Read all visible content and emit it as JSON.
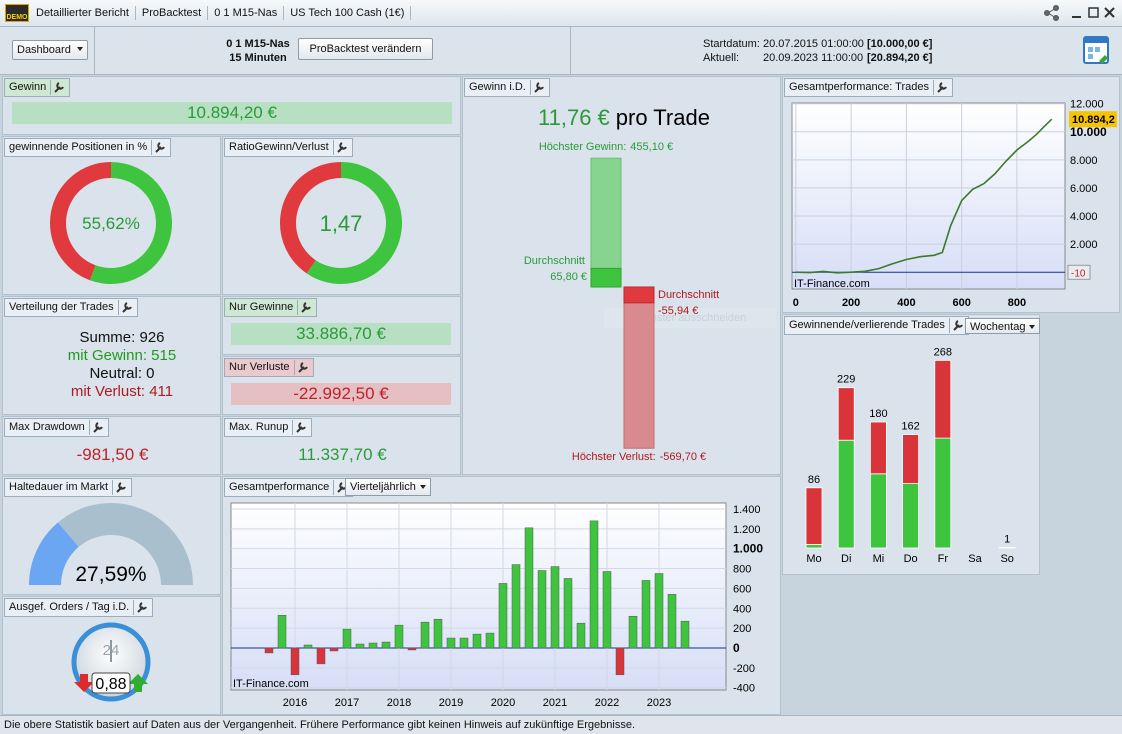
{
  "window": {
    "badge": "DEMO",
    "tabs": [
      "Detaillierter Bericht",
      "ProBacktest",
      "0 1 M15-Nas",
      "US Tech 100 Cash (1€)"
    ]
  },
  "toolbar": {
    "view": "Dashboard",
    "system": "0 1 M15-Nas",
    "timeframe": "15 Minuten",
    "edit": "ProBacktest verändern",
    "start_label": "Startdatum:",
    "start_date": "20.07.2015 01:00:00",
    "start_capital": "[10.000,00 €]",
    "current_label": "Aktuell:",
    "current_date": "20.09.2023 11:00:00",
    "current_capital": "[20.894,20 €]"
  },
  "widgets": {
    "profit": {
      "title": "Gewinn",
      "value": "10.894,20 €"
    },
    "win_rate": {
      "title": "gewinnende Positionen in %",
      "value": 55.62,
      "label": "55,62%"
    },
    "ratio": {
      "title": "RatioGewinn/Verlust",
      "value": 1.47,
      "label": "1,47"
    },
    "distribution": {
      "title": "Verteilung der Trades",
      "rows": [
        {
          "label": "Summe:",
          "value": 926
        },
        {
          "label": "mit Gewinn:",
          "value": 515
        },
        {
          "label": "Neutral:",
          "value": 0
        },
        {
          "label": "mit Verlust:",
          "value": 411
        }
      ]
    },
    "gains_only": {
      "title": "Nur Gewinne",
      "value": "33.886,70 €"
    },
    "losses_only": {
      "title": "Nur Verluste",
      "value": "-22.992,50 €"
    },
    "max_drawdown": {
      "title": "Max Drawdown",
      "value": "-981,50 €"
    },
    "max_runup": {
      "title": "Max. Runup",
      "value": "11.337,70 €"
    },
    "avg_trade": {
      "title": "Gewinn i.D.",
      "value": "11,76 €",
      "unit": "pro Trade",
      "max_gain_label": "Höchster Gewinn:",
      "max_gain": {
        "value": 455.1,
        "label": "455,10 €"
      },
      "avg_gain_label": "Durchschnitt",
      "avg_gain": {
        "value": 65.8,
        "label": "65,80 €"
      },
      "avg_loss_label": "Durchschnitt",
      "avg_loss": {
        "value": -55.94,
        "label": "-55,94 €"
      },
      "max_loss_label": "Höchster Verlust:",
      "max_loss": {
        "value": -569.7,
        "label": "-569,70 €"
      }
    },
    "holding_time": {
      "title": "Haltedauer im Markt",
      "value": 27.59,
      "label": "27,59%"
    },
    "orders_per_day": {
      "title": "Ausgef. Orders / Tag i.D.",
      "value": 0.88,
      "label": "0,88",
      "clock": "24"
    }
  },
  "chart_data": [
    {
      "type": "line",
      "title": "Gesamtperformance: Trades",
      "x": [
        0,
        50,
        100,
        150,
        200,
        250,
        300,
        350,
        400,
        450,
        500,
        530,
        560,
        600,
        640,
        680,
        720,
        760,
        800,
        840,
        870,
        900,
        926
      ],
      "series": [
        {
          "color": "#3d7a2c",
          "values": [
            0,
            -30,
            50,
            -50,
            0,
            60,
            250,
            600,
            900,
            1100,
            1200,
            1400,
            3300,
            5100,
            5900,
            6300,
            7000,
            7900,
            8700,
            9300,
            9800,
            10400,
            10894.2
          ]
        }
      ],
      "xlim": [
        -14,
        974
      ],
      "ylim": [
        -1200,
        12050
      ],
      "xticks": [
        0,
        200,
        400,
        600,
        800
      ],
      "yticks": [
        {
          "value": 2000,
          "label": "2.000"
        },
        {
          "value": 4000,
          "label": "4.000"
        },
        {
          "value": 6000,
          "label": "6.000"
        },
        {
          "value": 8000,
          "label": "8.000"
        },
        {
          "value": 10000,
          "label": "10.000"
        },
        {
          "value": 12000,
          "label": "12.000"
        }
      ],
      "last_value": {
        "value": 10894.2,
        "label": "10.894,2"
      },
      "baseline": {
        "value": -10,
        "label": "-10"
      },
      "watermark": "IT-Finance.com",
      "grid": true
    },
    {
      "type": "bar",
      "title": "Gesamtperformance",
      "period": "Vierteljährlich",
      "categories": [
        null,
        null,
        "2016",
        null,
        null,
        null,
        "2017",
        null,
        null,
        null,
        "2018",
        null,
        null,
        null,
        "2019",
        null,
        null,
        null,
        "2020",
        null,
        null,
        null,
        "2021",
        null,
        null,
        null,
        "2022",
        null,
        null,
        null,
        "2023",
        null,
        null
      ],
      "values": [
        -50,
        330,
        -270,
        30,
        -160,
        -30,
        190,
        40,
        50,
        60,
        230,
        -20,
        260,
        290,
        100,
        100,
        140,
        150,
        650,
        840,
        1210,
        780,
        820,
        700,
        250,
        1280,
        770,
        -270,
        320,
        680,
        750,
        540,
        270
      ],
      "ylim": [
        -423,
        1460
      ],
      "yticks": [
        {
          "value": 1400,
          "label": "1.400"
        },
        {
          "value": 1200,
          "label": "1.200"
        },
        {
          "value": 1000,
          "label": "1.000"
        },
        800,
        600,
        400,
        200,
        0,
        -200,
        -400
      ],
      "colors": {
        "positive": "#3ec43e",
        "negative": "#d9343a"
      },
      "watermark": "IT-Finance.com",
      "grid": true
    },
    {
      "type": "stacked-bar",
      "title": "Gewinnende/verlierende Trades",
      "period": "Wochentag",
      "categories": [
        "Mo",
        "Di",
        "Mi",
        "Do",
        "Fr",
        "Sa",
        "So"
      ],
      "series": [
        {
          "color": "#3ec43e",
          "values": [
            5,
            154,
            106,
            92,
            157,
            0,
            1
          ]
        },
        {
          "color": "#d9343a",
          "values": [
            81,
            75,
            74,
            70,
            111,
            0,
            0
          ]
        }
      ],
      "totals": [
        86,
        229,
        180,
        162,
        268,
        null,
        1
      ]
    }
  ],
  "overlay": "Fenster ausschneiden",
  "footer": "Die obere Statistik basiert auf Daten aus der Vergangenheit. Frühere Performance gibt keinen Hinweis auf zukünftige Ergebnisse."
}
